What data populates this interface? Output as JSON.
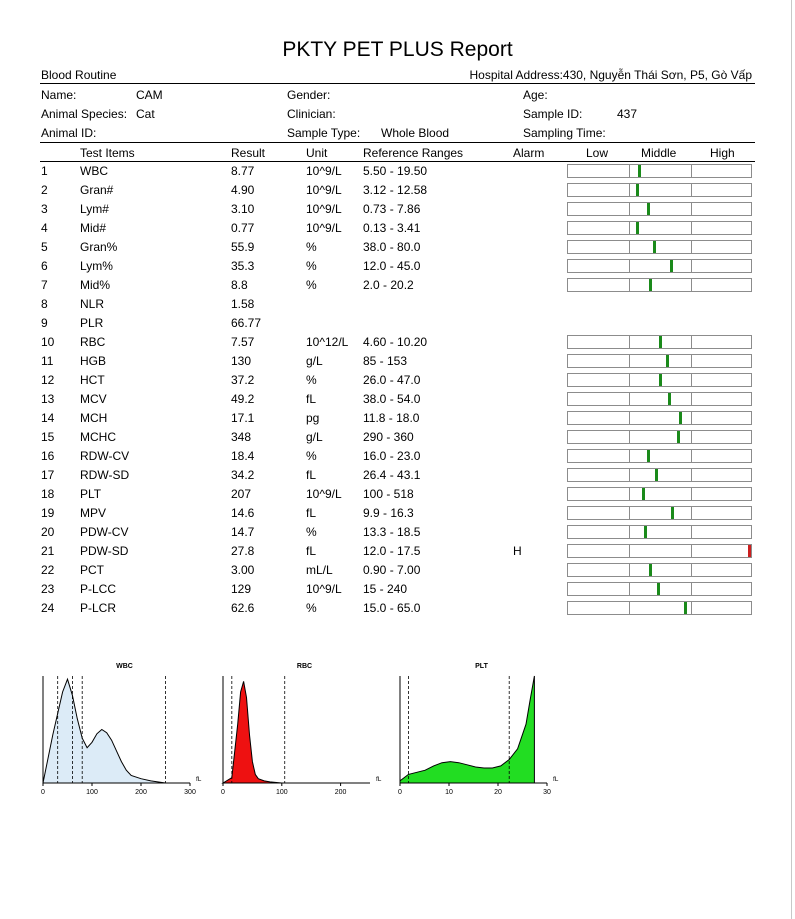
{
  "report": {
    "title": "PKTY PET PLUS Report",
    "section": "Blood Routine",
    "hospital_address": "Hospital Address:430, Nguyễn Thái Sơn, P5, Gò Vấp"
  },
  "patient": {
    "name_label": "Name:",
    "name_value": "CAM",
    "gender_label": "Gender:",
    "age_label": "Age:",
    "species_label": "Animal Species:",
    "species_value": "Cat",
    "clinician_label": "Clinician:",
    "sample_id_label": "Sample ID:",
    "sample_id_value": "437",
    "animal_id_label": "Animal ID:",
    "sample_type_label": "Sample Type:",
    "sample_type_value": "Whole Blood",
    "sampling_time_label": "Sampling Time:"
  },
  "table": {
    "headers": {
      "items": "Test Items",
      "result": "Result",
      "unit": "Unit",
      "range": "Reference Ranges",
      "alarm": "Alarm",
      "low": "Low",
      "middle": "Middle",
      "high": "High"
    },
    "rows": [
      {
        "no": "1",
        "name": "WBC",
        "result": "8.77",
        "unit": "10^9/L",
        "range": "5.50 - 19.50",
        "alarm": "",
        "level": 0.39,
        "color": "#1a8a1a"
      },
      {
        "no": "2",
        "name": "Gran#",
        "result": "4.90",
        "unit": "10^9/L",
        "range": "3.12 - 12.58",
        "alarm": "",
        "level": 0.38,
        "color": "#1a8a1a"
      },
      {
        "no": "3",
        "name": "Lym#",
        "result": "3.10",
        "unit": "10^9/L",
        "range": "0.73 - 7.86",
        "alarm": "",
        "level": 0.44,
        "color": "#1a8a1a"
      },
      {
        "no": "4",
        "name": "Mid#",
        "result": "0.77",
        "unit": "10^9/L",
        "range": "0.13 - 3.41",
        "alarm": "",
        "level": 0.38,
        "color": "#1a8a1a"
      },
      {
        "no": "5",
        "name": "Gran%",
        "result": "55.9",
        "unit": "%",
        "range": "38.0 - 80.0",
        "alarm": "",
        "level": 0.47,
        "color": "#1a8a1a"
      },
      {
        "no": "6",
        "name": "Lym%",
        "result": "35.3",
        "unit": "%",
        "range": "12.0 - 45.0",
        "alarm": "",
        "level": 0.56,
        "color": "#1a8a1a"
      },
      {
        "no": "7",
        "name": "Mid%",
        "result": "8.8",
        "unit": "%",
        "range": "2.0 - 20.2",
        "alarm": "",
        "level": 0.45,
        "color": "#1a8a1a"
      },
      {
        "no": "8",
        "name": "NLR",
        "result": "1.58",
        "unit": "",
        "range": "",
        "alarm": "",
        "level": null,
        "color": ""
      },
      {
        "no": "9",
        "name": "PLR",
        "result": "66.77",
        "unit": "",
        "range": "",
        "alarm": "",
        "level": null,
        "color": ""
      },
      {
        "no": "10",
        "name": "RBC",
        "result": "7.57",
        "unit": "10^12/L",
        "range": "4.60 - 10.20",
        "alarm": "",
        "level": 0.5,
        "color": "#1a8a1a"
      },
      {
        "no": "11",
        "name": "HGB",
        "result": "130",
        "unit": "g/L",
        "range": "85 - 153",
        "alarm": "",
        "level": 0.54,
        "color": "#1a8a1a"
      },
      {
        "no": "12",
        "name": "HCT",
        "result": "37.2",
        "unit": "%",
        "range": "26.0 - 47.0",
        "alarm": "",
        "level": 0.5,
        "color": "#1a8a1a"
      },
      {
        "no": "13",
        "name": "MCV",
        "result": "49.2",
        "unit": "fL",
        "range": "38.0 - 54.0",
        "alarm": "",
        "level": 0.55,
        "color": "#1a8a1a"
      },
      {
        "no": "14",
        "name": "MCH",
        "result": "17.1",
        "unit": "pg",
        "range": "11.8 - 18.0",
        "alarm": "",
        "level": 0.61,
        "color": "#1a8a1a"
      },
      {
        "no": "15",
        "name": "MCHC",
        "result": "348",
        "unit": "g/L",
        "range": "290 - 360",
        "alarm": "",
        "level": 0.6,
        "color": "#1a8a1a"
      },
      {
        "no": "16",
        "name": "RDW-CV",
        "result": "18.4",
        "unit": "%",
        "range": "16.0 - 23.0",
        "alarm": "",
        "level": 0.44,
        "color": "#1a8a1a"
      },
      {
        "no": "17",
        "name": "RDW-SD",
        "result": "34.2",
        "unit": "fL",
        "range": "26.4 - 43.1",
        "alarm": "",
        "level": 0.48,
        "color": "#1a8a1a"
      },
      {
        "no": "18",
        "name": "PLT",
        "result": "207",
        "unit": "10^9/L",
        "range": "100 - 518",
        "alarm": "",
        "level": 0.41,
        "color": "#1a8a1a"
      },
      {
        "no": "19",
        "name": "MPV",
        "result": "14.6",
        "unit": "fL",
        "range": "9.9 - 16.3",
        "alarm": "",
        "level": 0.57,
        "color": "#1a8a1a"
      },
      {
        "no": "20",
        "name": "PDW-CV",
        "result": "14.7",
        "unit": "%",
        "range": "13.3 - 18.5",
        "alarm": "",
        "level": 0.42,
        "color": "#1a8a1a"
      },
      {
        "no": "21",
        "name": "PDW-SD",
        "result": "27.8",
        "unit": "fL",
        "range": "12.0 - 17.5",
        "alarm": "H",
        "level": 0.99,
        "color": "#cc1f1f"
      },
      {
        "no": "22",
        "name": "PCT",
        "result": "3.00",
        "unit": "mL/L",
        "range": "0.90 - 7.00",
        "alarm": "",
        "level": 0.45,
        "color": "#1a8a1a"
      },
      {
        "no": "23",
        "name": "P-LCC",
        "result": "129",
        "unit": "10^9/L",
        "range": "15 - 240",
        "alarm": "",
        "level": 0.49,
        "color": "#1a8a1a"
      },
      {
        "no": "24",
        "name": "P-LCR",
        "result": "62.6",
        "unit": "%",
        "range": "15.0 - 65.0",
        "alarm": "",
        "level": 0.64,
        "color": "#1a8a1a"
      }
    ]
  },
  "chart_data": [
    {
      "type": "area",
      "title": "WBC",
      "xlabel": "fL",
      "xlim": [
        0,
        300
      ],
      "x_ticks": [
        "0",
        "100",
        "200",
        "300"
      ],
      "gates": [
        30,
        60,
        80,
        250
      ],
      "fill_color": "#dcebf7",
      "x": [
        0,
        20,
        40,
        50,
        60,
        70,
        80,
        90,
        100,
        110,
        120,
        130,
        140,
        150,
        160,
        170,
        180,
        200,
        220,
        250
      ],
      "y": [
        0,
        0.45,
        0.85,
        0.97,
        0.82,
        0.6,
        0.42,
        0.33,
        0.38,
        0.46,
        0.5,
        0.47,
        0.4,
        0.3,
        0.2,
        0.12,
        0.07,
        0.04,
        0.02,
        0
      ]
    },
    {
      "type": "area",
      "title": "RBC",
      "xlabel": "fL",
      "xlim": [
        0,
        250
      ],
      "x_ticks": [
        "0",
        "100",
        "200"
      ],
      "gates": [
        15,
        105
      ],
      "fill_color": "#ee1111",
      "x": [
        0,
        15,
        25,
        30,
        35,
        40,
        45,
        50,
        55,
        60,
        70,
        80,
        100
      ],
      "y": [
        0,
        0.05,
        0.55,
        0.85,
        0.95,
        0.8,
        0.45,
        0.2,
        0.08,
        0.04,
        0.02,
        0.01,
        0
      ]
    },
    {
      "type": "area",
      "title": "PLT",
      "xlabel": "fL",
      "xlim": [
        0,
        35
      ],
      "x_ticks": [
        "0",
        "10",
        "20",
        "30"
      ],
      "gates": [
        2,
        26
      ],
      "fill_color": "#22dd22",
      "x": [
        0,
        2,
        4,
        6,
        8,
        10,
        12,
        14,
        16,
        18,
        20,
        22,
        24,
        26,
        28,
        30,
        31,
        32
      ],
      "y": [
        0.02,
        0.08,
        0.1,
        0.12,
        0.16,
        0.19,
        0.2,
        0.19,
        0.17,
        0.15,
        0.14,
        0.14,
        0.16,
        0.22,
        0.32,
        0.55,
        0.78,
        1.0
      ]
    }
  ]
}
